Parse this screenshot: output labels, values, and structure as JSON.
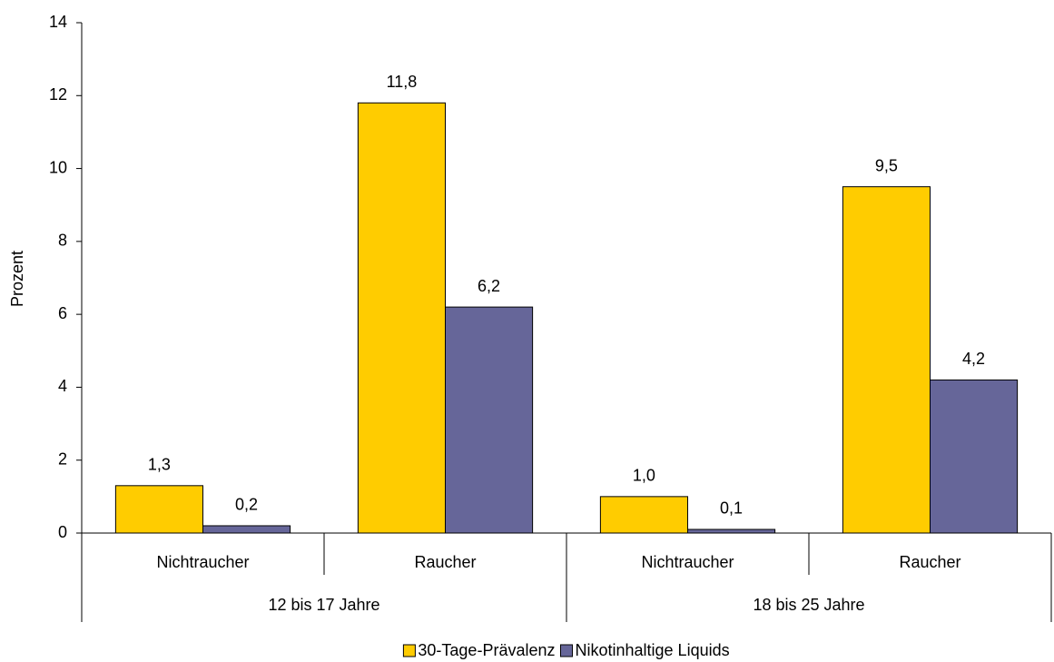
{
  "chart_data": {
    "type": "bar",
    "y_label": "Prozent",
    "groups": [
      {
        "label": "12 bis 17 Jahre",
        "categories": [
          "Nichtraucher",
          "Raucher"
        ]
      },
      {
        "label": "18 bis 25 Jahre",
        "categories": [
          "Nichtraucher",
          "Raucher"
        ]
      }
    ],
    "series": [
      {
        "name": "30-Tage-Prävalenz",
        "color": "#ffcc00",
        "values": [
          1.3,
          11.8,
          1.0,
          9.5
        ],
        "value_labels": [
          "1,3",
          "11,8",
          "1,0",
          "9,5"
        ]
      },
      {
        "name": "Nikotinhaltige Liquids",
        "color": "#666699",
        "values": [
          0.2,
          6.2,
          0.1,
          4.2
        ],
        "value_labels": [
          "0,2",
          "6,2",
          "0,1",
          "4,2"
        ]
      }
    ],
    "ylim": [
      0,
      14
    ],
    "yticks": [
      0,
      2,
      4,
      6,
      8,
      10,
      12,
      14
    ],
    "legend": "bottom"
  }
}
